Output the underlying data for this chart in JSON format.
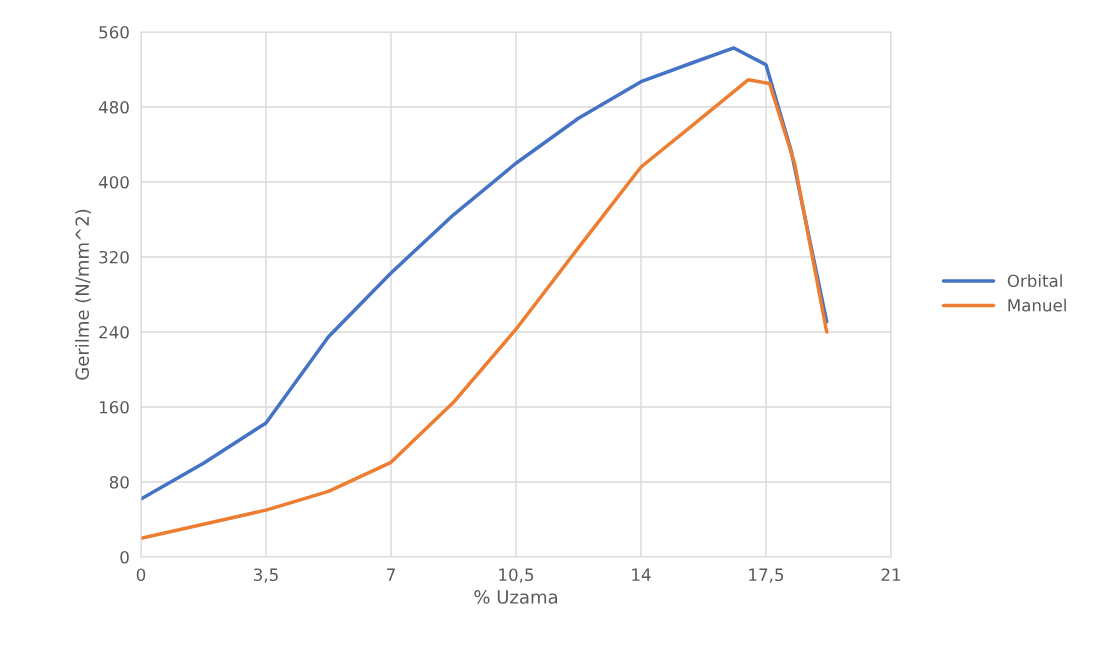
{
  "chart_data": {
    "type": "line",
    "xlabel": "% Uzama",
    "ylabel": "Gerilme (N/mm^2)",
    "xlim": [
      0,
      21
    ],
    "xticks": [
      0,
      {
        "value": 3.5,
        "label": "3,5"
      },
      7,
      {
        "value": 10.5,
        "label": "10,5"
      },
      14,
      {
        "value": 17.5,
        "label": "17,5"
      },
      21
    ],
    "ylim": [
      0,
      560
    ],
    "yticks": [
      0,
      80,
      160,
      240,
      320,
      400,
      480,
      560
    ],
    "grid": true,
    "legend": "right",
    "marker": "none",
    "line_style": "solid",
    "series": [
      {
        "name": "Orbital",
        "color": "#4472c4",
        "x": [
          0,
          1.75,
          3.5,
          5.25,
          7,
          8.75,
          10.5,
          12.25,
          14,
          15.5,
          16.6,
          17.5,
          18.2,
          19.2
        ],
        "values": [
          62,
          100,
          143,
          235,
          303,
          365,
          420,
          468,
          507,
          528,
          543,
          525,
          434,
          251
        ]
      },
      {
        "name": "Manuel",
        "color": "#ed7d31",
        "x": [
          0,
          1.75,
          3.5,
          5.25,
          7,
          8.75,
          10.5,
          12.25,
          14,
          15.75,
          17.0,
          17.6,
          18.3,
          19.2
        ],
        "values": [
          20,
          35,
          50,
          70,
          101,
          165,
          243,
          330,
          416,
          470,
          509,
          505,
          420,
          240
        ]
      }
    ]
  }
}
